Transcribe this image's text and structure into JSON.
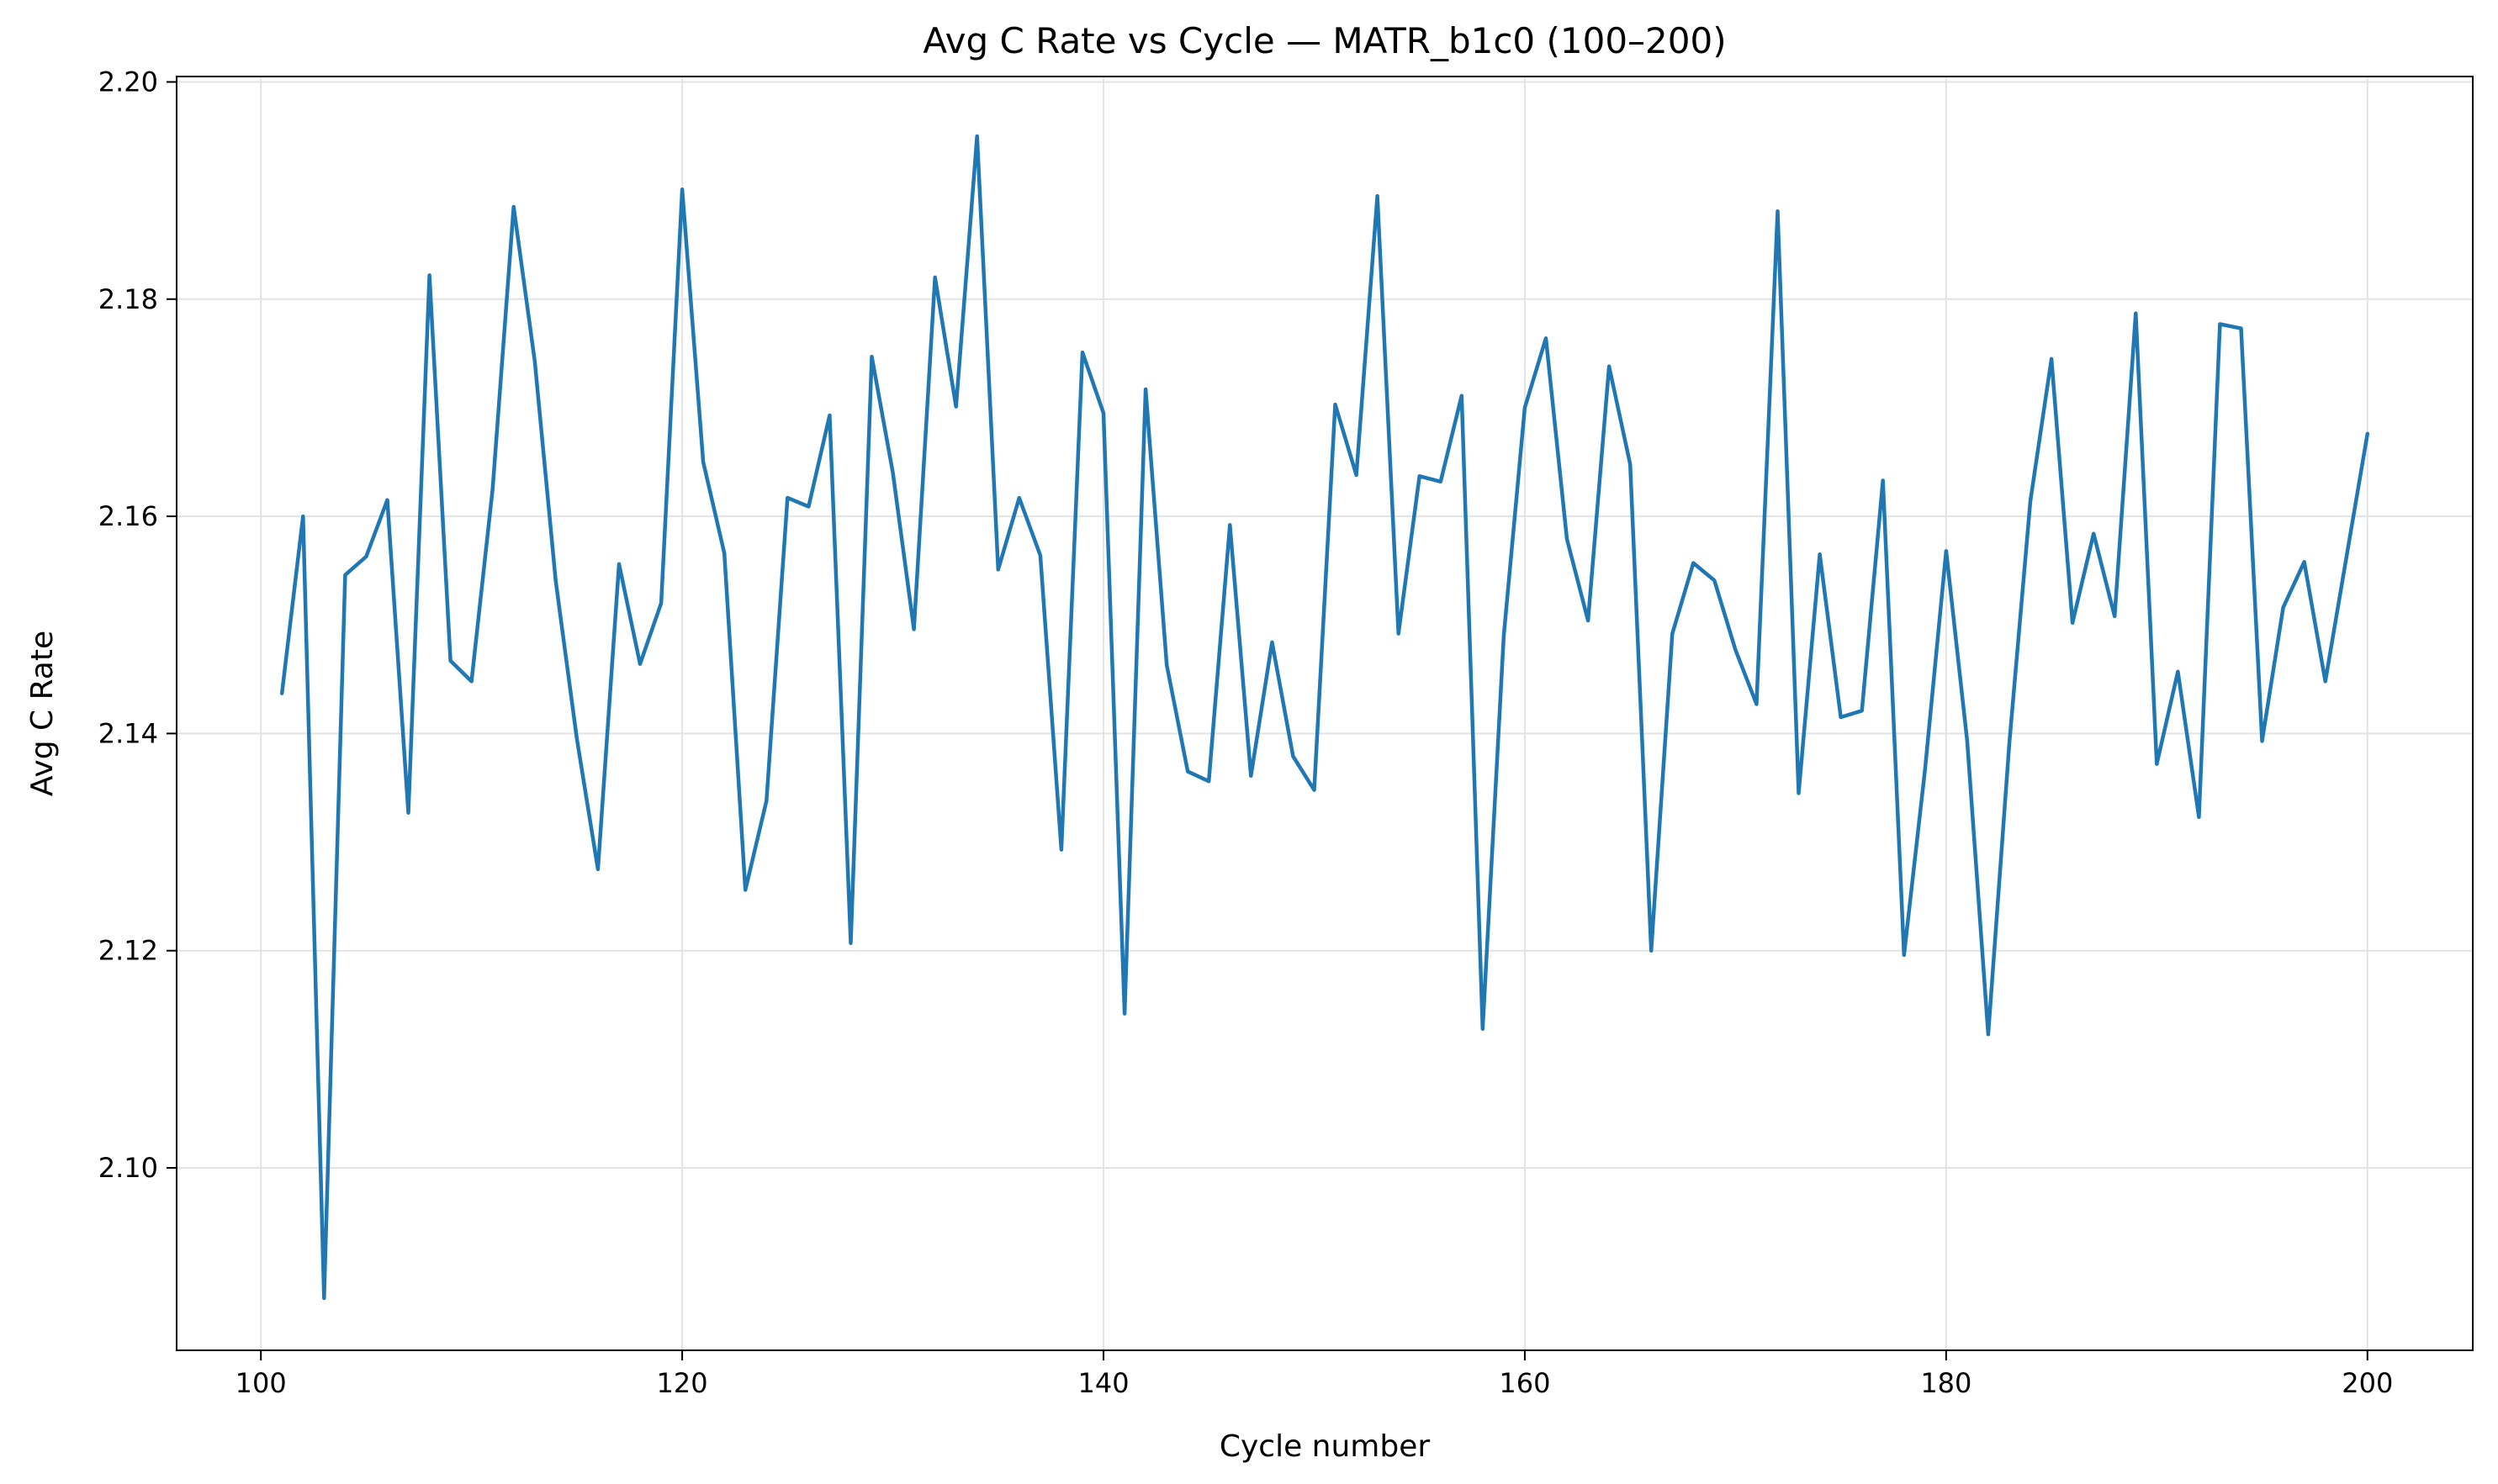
{
  "chart_data": {
    "type": "line",
    "title": "Avg C Rate vs Cycle — MATR_b1c0 (100–200)",
    "xlabel": "Cycle number",
    "ylabel": "Avg C Rate",
    "xlim": [
      96,
      205
    ],
    "ylim": [
      2.0832,
      2.2005
    ],
    "xticks": [
      100,
      120,
      140,
      160,
      180,
      200
    ],
    "yticks": [
      2.1,
      2.12,
      2.14,
      2.16,
      2.18,
      2.2
    ],
    "xtick_labels": [
      "100",
      "120",
      "140",
      "160",
      "180",
      "200"
    ],
    "ytick_labels": [
      "2.10",
      "2.12",
      "2.14",
      "2.16",
      "2.18",
      "2.20"
    ],
    "grid": true,
    "series": [
      {
        "color": "#1f77b4",
        "x": [
          101,
          102,
          103,
          104,
          105,
          106,
          107,
          108,
          109,
          110,
          111,
          112,
          113,
          114,
          115,
          116,
          117,
          118,
          119,
          120,
          121,
          122,
          123,
          124,
          125,
          126,
          127,
          128,
          129,
          130,
          131,
          132,
          133,
          134,
          135,
          136,
          137,
          138,
          139,
          140,
          141,
          142,
          143,
          144,
          145,
          146,
          147,
          148,
          149,
          150,
          151,
          152,
          153,
          154,
          155,
          156,
          157,
          158,
          159,
          160,
          161,
          162,
          163,
          164,
          165,
          166,
          167,
          168,
          169,
          170,
          171,
          172,
          173,
          174,
          175,
          176,
          177,
          178,
          179,
          180,
          181,
          182,
          183,
          184,
          185,
          186,
          187,
          188,
          189,
          190,
          191,
          192,
          193,
          194,
          195,
          196,
          197,
          198,
          199,
          200
        ],
        "y": [
          2.1437,
          2.16,
          2.088,
          2.1546,
          2.1563,
          2.1615,
          2.1327,
          2.1822,
          2.1467,
          2.1448,
          2.1625,
          2.1885,
          2.1743,
          2.154,
          2.1395,
          2.1275,
          2.1556,
          2.1464,
          2.152,
          2.1901,
          2.165,
          2.1566,
          2.1256,
          2.1338,
          2.1617,
          2.1609,
          2.1693,
          2.1207,
          2.1747,
          2.164,
          2.1496,
          2.182,
          2.1701,
          2.195,
          2.1551,
          2.1617,
          2.1564,
          2.1293,
          2.1751,
          2.1695,
          2.1142,
          2.1717,
          2.1463,
          2.1365,
          2.1356,
          2.1592,
          2.1361,
          2.1484,
          2.1379,
          2.1348,
          2.1703,
          2.1638,
          2.1895,
          2.1492,
          2.1637,
          2.1632,
          2.1711,
          2.1128,
          2.149,
          2.17,
          2.1764,
          2.1579,
          2.1504,
          2.1738,
          2.1648,
          2.12,
          2.1492,
          2.1557,
          2.1541,
          2.1477,
          2.1427,
          2.1881,
          2.1345,
          2.1565,
          2.1415,
          2.1421,
          2.1633,
          2.1196,
          2.1367,
          2.1568,
          2.1393,
          2.1123,
          2.1391,
          2.1614,
          2.1745,
          2.1502,
          2.1584,
          2.1508,
          2.1787,
          2.1372,
          2.1457,
          2.1323,
          2.1777,
          2.1773,
          2.1393,
          2.1516,
          2.1558,
          2.1448,
          2.1562,
          2.1676
        ]
      }
    ]
  }
}
